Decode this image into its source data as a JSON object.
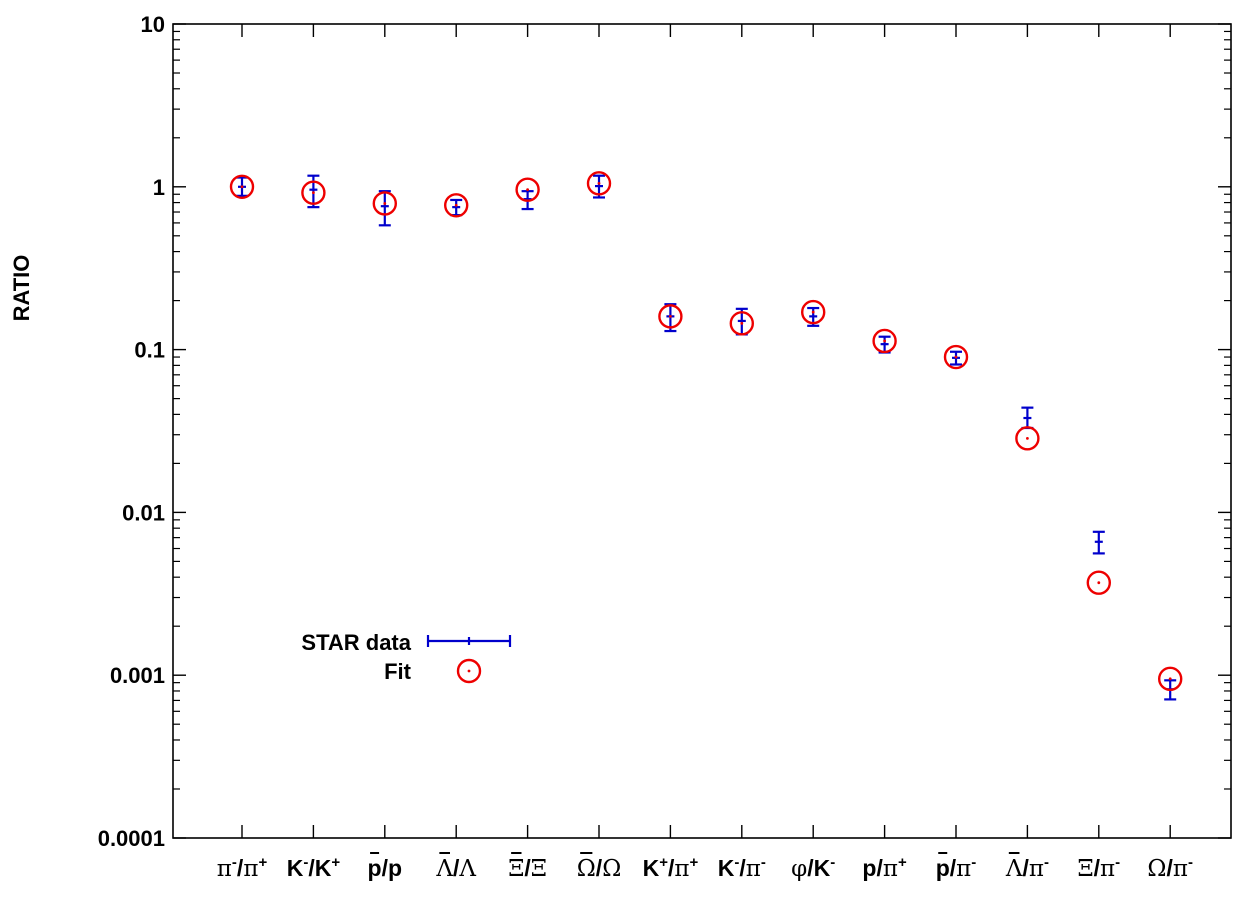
{
  "chart_data": {
    "type": "scatter",
    "title": "",
    "xlabel": "",
    "ylabel": "RATIO",
    "yscale": "log",
    "ylim": [
      0.0001,
      10
    ],
    "yticks": [
      0.0001,
      0.001,
      0.01,
      0.1,
      1,
      10
    ],
    "ytick_labels": [
      "0.0001",
      "0.001",
      "0.01",
      "0.1",
      "1",
      "10"
    ],
    "grid": false,
    "legend_placement": "lower-left",
    "categories": [
      {
        "base": "π",
        "base_greek": true,
        "base_bar": false,
        "sup1": "-",
        "slash_base": "π",
        "slash_greek": true,
        "sup2": "+"
      },
      {
        "base": "K",
        "base_greek": false,
        "base_bar": false,
        "sup1": "-",
        "slash_base": "K",
        "slash_greek": false,
        "sup2": "+"
      },
      {
        "base": "p",
        "base_greek": false,
        "base_bar": true,
        "sup1": "",
        "slash_base": "p",
        "slash_greek": false,
        "sup2": ""
      },
      {
        "base": "Λ",
        "base_greek": true,
        "base_bar": true,
        "sup1": "",
        "slash_base": "Λ",
        "slash_greek": true,
        "sup2": ""
      },
      {
        "base": "Ξ",
        "base_greek": true,
        "base_bar": true,
        "sup1": "",
        "slash_base": "Ξ",
        "slash_greek": true,
        "sup2": ""
      },
      {
        "base": "Ω",
        "base_greek": true,
        "base_bar": true,
        "sup1": "",
        "slash_base": "Ω",
        "slash_greek": true,
        "sup2": ""
      },
      {
        "base": "K",
        "base_greek": false,
        "base_bar": false,
        "sup1": "+",
        "slash_base": "π",
        "slash_greek": true,
        "sup2": "+"
      },
      {
        "base": "K",
        "base_greek": false,
        "base_bar": false,
        "sup1": "-",
        "slash_base": "π",
        "slash_greek": true,
        "sup2": "-"
      },
      {
        "base": "φ",
        "base_greek": true,
        "base_bar": false,
        "sup1": "",
        "slash_base": "K",
        "slash_greek": false,
        "sup2": "-"
      },
      {
        "base": "p",
        "base_greek": false,
        "base_bar": false,
        "sup1": "",
        "slash_base": "π",
        "slash_greek": true,
        "sup2": "+"
      },
      {
        "base": "p",
        "base_greek": false,
        "base_bar": true,
        "sup1": "",
        "slash_base": "π",
        "slash_greek": true,
        "sup2": "-"
      },
      {
        "base": "Λ",
        "base_greek": true,
        "base_bar": true,
        "sup1": "",
        "slash_base": "π",
        "slash_greek": true,
        "sup2": "-"
      },
      {
        "base": "Ξ",
        "base_greek": true,
        "base_bar": false,
        "sup1": "",
        "slash_base": "π",
        "slash_greek": true,
        "sup2": "-"
      },
      {
        "base": "Ω",
        "base_greek": true,
        "base_bar": false,
        "sup1": "",
        "slash_base": "π",
        "slash_greek": true,
        "sup2": "-"
      }
    ],
    "series": [
      {
        "name": "STAR data",
        "marker": "error-bar",
        "color": "#0000cc",
        "values": [
          1.0,
          0.96,
          0.76,
          0.75,
          0.84,
          1.01,
          0.16,
          0.15,
          0.16,
          0.108,
          0.089,
          0.038,
          0.0066,
          0.00082
        ],
        "err_low": [
          0.88,
          0.75,
          0.58,
          0.67,
          0.73,
          0.86,
          0.13,
          0.124,
          0.14,
          0.096,
          0.081,
          0.033,
          0.0056,
          0.00071
        ],
        "err_high": [
          1.14,
          1.17,
          0.94,
          0.83,
          0.94,
          1.17,
          0.19,
          0.178,
          0.18,
          0.12,
          0.097,
          0.044,
          0.0076,
          0.00093
        ]
      },
      {
        "name": "Fit",
        "marker": "circle-dot",
        "color": "#ee0000",
        "values": [
          1.0,
          0.92,
          0.79,
          0.77,
          0.96,
          1.05,
          0.16,
          0.145,
          0.17,
          0.113,
          0.09,
          0.0285,
          0.0037,
          0.00095
        ]
      }
    ]
  }
}
